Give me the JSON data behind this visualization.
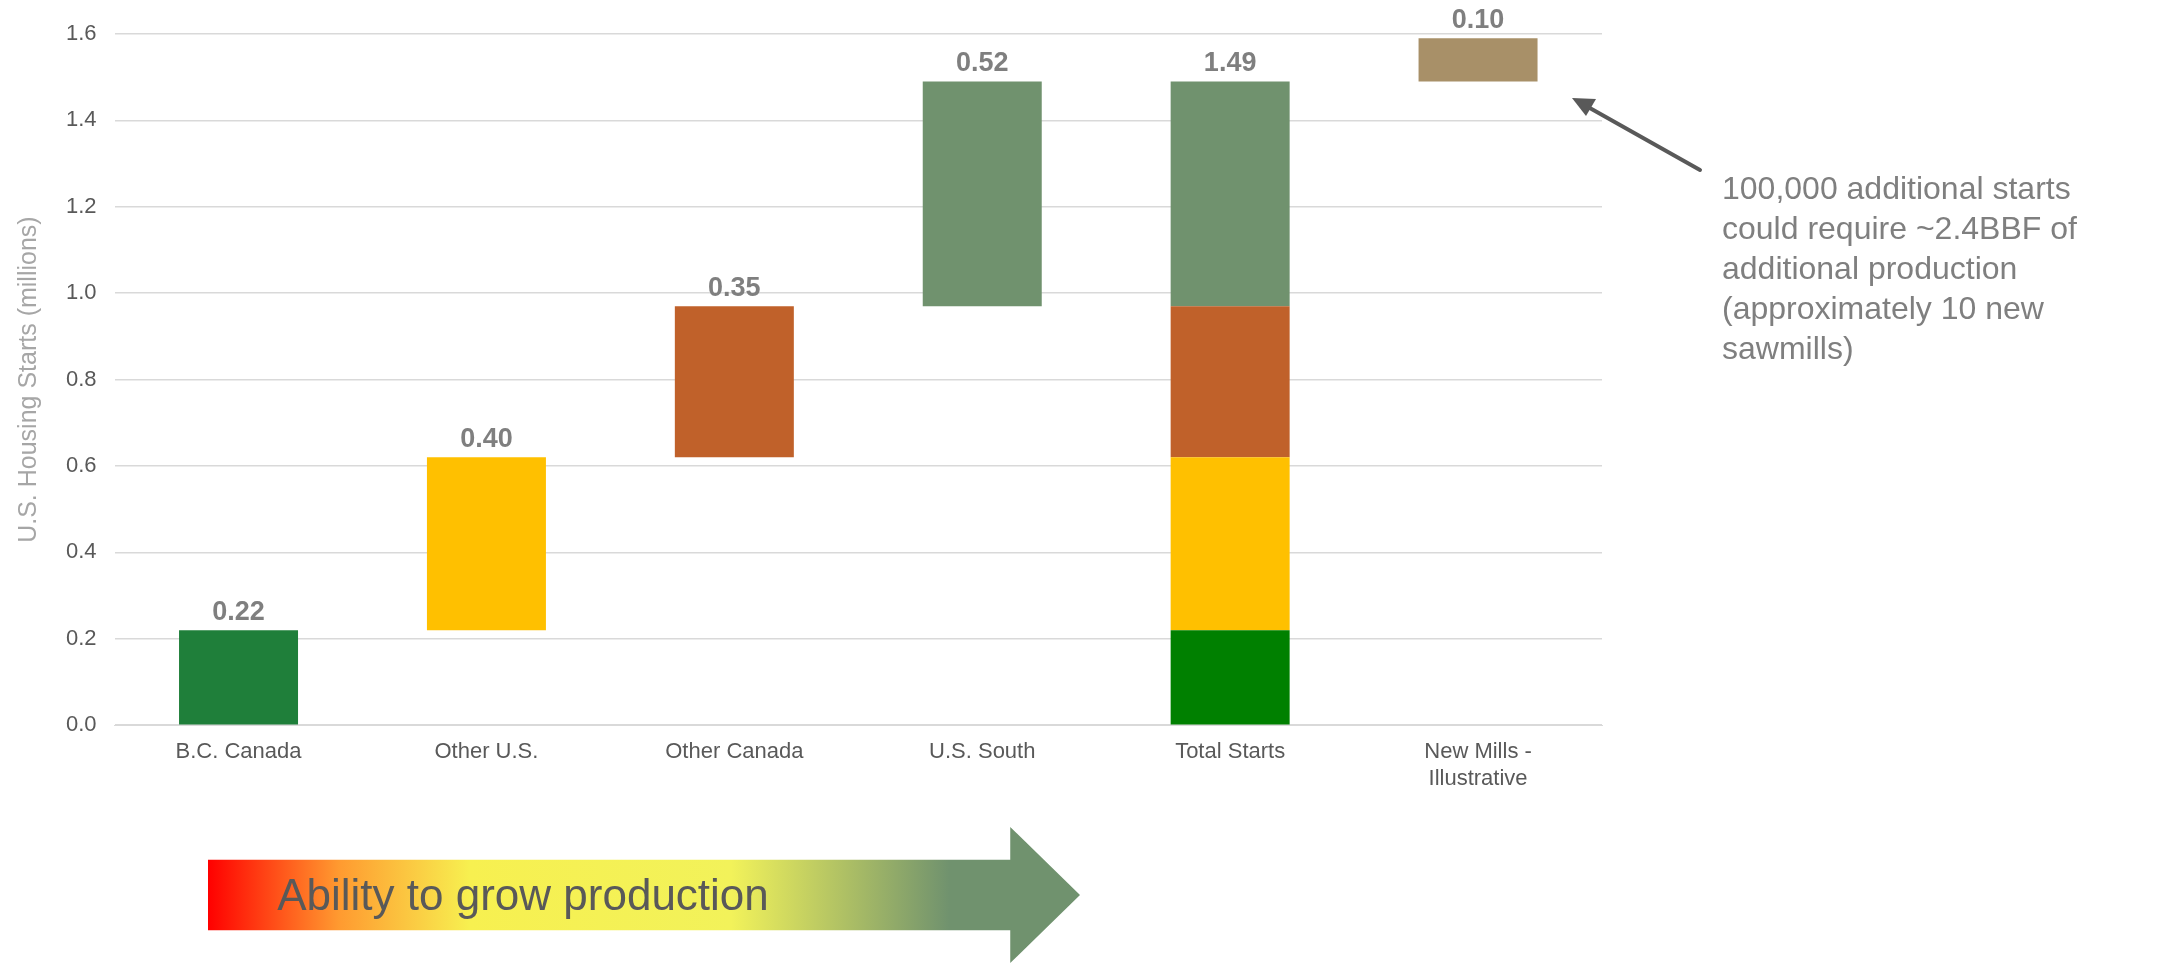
{
  "chart_data": {
    "type": "bar",
    "ylabel": "U.S. Housing Starts (millions)",
    "categories": [
      "B.C. Canada",
      "Other U.S.",
      "Other Canada",
      "U.S. South",
      "Total Starts",
      "New Mills - Illustrative"
    ],
    "series": [
      {
        "colors": [
          "#1f7f3a",
          null,
          null,
          null,
          "#008000",
          null
        ],
        "values": [
          0.22,
          null,
          null,
          null,
          0.22,
          null
        ],
        "base": [
          0,
          null,
          null,
          null,
          0,
          null
        ],
        "value_labels": [
          "0.22",
          null,
          null,
          null,
          null,
          null
        ]
      },
      {
        "color": "#ffc000",
        "values": [
          null,
          0.4,
          null,
          null,
          0.4,
          null
        ],
        "base": [
          null,
          0.22,
          null,
          null,
          0.22,
          null
        ],
        "value_labels": [
          null,
          "0.40",
          null,
          null,
          null,
          null
        ]
      },
      {
        "color": "#c0612a",
        "values": [
          null,
          null,
          0.35,
          null,
          0.35,
          null
        ],
        "base": [
          null,
          null,
          0.62,
          null,
          0.62,
          null
        ],
        "value_labels": [
          null,
          null,
          "0.35",
          null,
          null,
          null
        ]
      },
      {
        "color": "#70926e",
        "values": [
          null,
          null,
          null,
          0.52,
          0.52,
          null
        ],
        "base": [
          null,
          null,
          null,
          0.97,
          0.97,
          null
        ],
        "value_labels": [
          null,
          null,
          null,
          "0.52",
          null,
          null
        ]
      },
      {
        "color": "#a89068",
        "values": [
          null,
          null,
          null,
          null,
          null,
          0.1
        ],
        "base": [
          null,
          null,
          null,
          null,
          null,
          1.49
        ],
        "value_labels": [
          null,
          null,
          null,
          null,
          null,
          "0.10"
        ]
      }
    ],
    "totals": [
      null,
      null,
      null,
      null,
      "1.49",
      null
    ],
    "ylim": [
      0,
      1.6
    ],
    "yticks": [
      {
        "value": 0,
        "label": "0.0"
      },
      {
        "value": 0.2,
        "label": "0.2"
      },
      {
        "value": 0.4,
        "label": "0.4"
      },
      {
        "value": 0.6,
        "label": "0.6"
      },
      {
        "value": 0.8,
        "label": "0.8"
      },
      {
        "value": 1.0,
        "label": "1.0"
      },
      {
        "value": 1.2,
        "label": "1.2"
      },
      {
        "value": 1.4,
        "label": "1.4"
      },
      {
        "value": 1.6,
        "label": "1.6"
      }
    ],
    "grid": "y",
    "legend": false,
    "annotations": [
      "100,000 additional starts could require ~2.4BBF of additional production (approximately 10 new sawmills)",
      "Ability to grow production"
    ]
  }
}
